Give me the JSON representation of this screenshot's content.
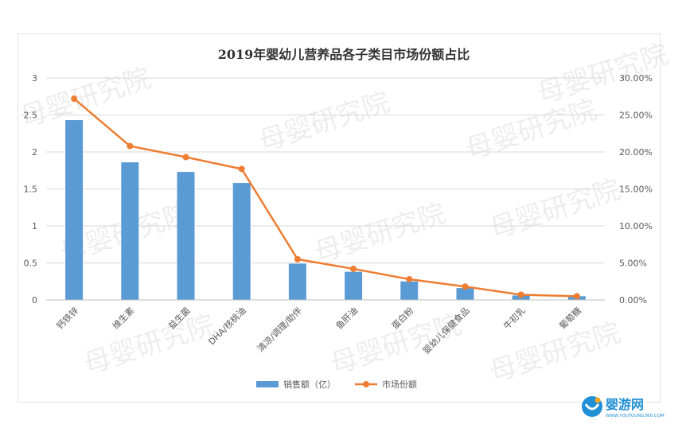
{
  "chart_data": {
    "type": "bar",
    "title": "2019年婴幼儿营养品各子类目市场份额占比",
    "categories": [
      "钙铁锌",
      "维生素",
      "益生菌",
      "DHA/核桃油",
      "清凉/调理/助伴",
      "鱼肝油",
      "蛋白粉",
      "婴幼儿保健食品",
      "牛初乳",
      "葡萄糖"
    ],
    "series": [
      {
        "name": "销售额（亿）",
        "kind": "bar",
        "axis": "left",
        "color": "#5b9bd5",
        "values": [
          2.43,
          1.86,
          1.73,
          1.58,
          0.49,
          0.38,
          0.25,
          0.16,
          0.06,
          0.05
        ]
      },
      {
        "name": "市场份额",
        "kind": "line",
        "axis": "right",
        "color": "#ed7d31",
        "values": [
          27.2,
          20.8,
          19.3,
          17.7,
          5.5,
          4.2,
          2.8,
          1.8,
          0.7,
          0.5
        ]
      }
    ],
    "y_left": {
      "min": 0,
      "max": 3,
      "ticks": [
        "0",
        "0.5",
        "1",
        "1.5",
        "2",
        "2.5",
        "3"
      ]
    },
    "y_right": {
      "min": 0,
      "max": 30,
      "ticks": [
        "0.00%",
        "5.00%",
        "10.00%",
        "15.00%",
        "20.00%",
        "25.00%",
        "30.00%"
      ]
    },
    "grid": true,
    "legend_position": "bottom"
  },
  "watermark": {
    "text": "母婴研究院"
  },
  "logo": {
    "cn": "婴游网",
    "en": "WWW.YOUYOUNG360.COM",
    "brand_color": "#1f8fd6",
    "accent_color": "#f5a623"
  }
}
